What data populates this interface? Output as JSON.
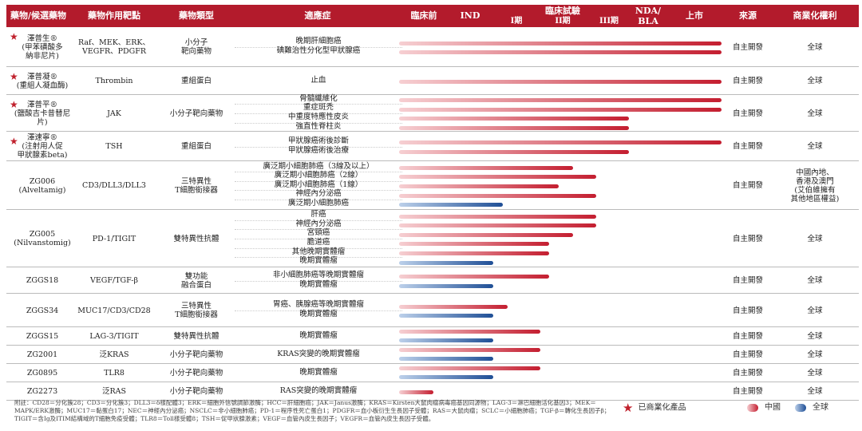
{
  "header": {
    "drug": "藥物/候選藥物",
    "target": "藥物作用靶點",
    "type": "藥物類型",
    "indication": "適應症",
    "preclinical": "臨床前",
    "ind": "IND",
    "clinical": "臨床試驗",
    "phase1": "I期",
    "phase2": "II期",
    "phase3": "III期",
    "nda": "NDA/\nBLA",
    "market": "上市",
    "source": "來源",
    "rights": "商業化權利"
  },
  "colors": {
    "header_bg": "#b31b2c",
    "china_bar": "#c41e30",
    "global_bar": "#1f4f96",
    "star": "#c0202c"
  },
  "chart_data": {
    "type": "bar",
    "orientation": "horizontal",
    "stages": [
      "臨床前",
      "IND",
      "I期",
      "II期",
      "III期",
      "NDA/BLA",
      "上市"
    ],
    "series": [
      {
        "name": "中國",
        "color": "#c41e30"
      },
      {
        "name": "全球",
        "color": "#1f4f96"
      }
    ],
    "value_note": "progress along stage axis: 0 = start of 臨床前, 7 = end of 上市",
    "groups": [
      {
        "starred": true,
        "drug": "澤普生®\n(甲苯磺酸多\n納非尼片)",
        "target": "Raf、MEK、ERK、\nVEGFR、PDGFR",
        "type": "小分子\n靶向藥物",
        "source": "自主開發",
        "rights": "全球",
        "indications": [
          {
            "name": "晚期肝細胞癌",
            "bars": [
              {
                "region": "cn",
                "progress": 7.0
              }
            ]
          },
          {
            "name": "碘難治性分化型甲狀腺癌",
            "bars": [
              {
                "region": "cn",
                "progress": 7.0
              }
            ]
          }
        ]
      },
      {
        "starred": true,
        "drug": "澤普凝®\n(重組人凝血酶)",
        "target": "Thrombin",
        "type": "重組蛋白",
        "source": "自主開發",
        "rights": "全球",
        "indications": [
          {
            "name": "止血",
            "bars": [
              {
                "region": "cn",
                "progress": 7.0
              }
            ]
          }
        ]
      },
      {
        "starred": true,
        "drug": "澤普平®\n(鹽酸吉卡昔替尼片)",
        "target": "JAK",
        "type": "小分子靶向藥物",
        "source": "自主開發",
        "rights": "全球",
        "indications": [
          {
            "name": "骨髓纖維化",
            "bars": [
              {
                "region": "cn",
                "progress": 7.0
              }
            ]
          },
          {
            "name": "重症斑禿",
            "bars": [
              {
                "region": "cn",
                "progress": 7.0
              }
            ]
          },
          {
            "name": "中重度特應性皮炎",
            "bars": [
              {
                "region": "cn",
                "progress": 5.0
              }
            ]
          },
          {
            "name": "強直性脊柱炎",
            "bars": [
              {
                "region": "cn",
                "progress": 5.0
              }
            ]
          }
        ]
      },
      {
        "starred": true,
        "drug": "澤速寧®\n(注射用人促\n甲狀腺素beta)",
        "target": "TSH",
        "type": "重組蛋白",
        "source": "自主開發",
        "rights": "全球",
        "indications": [
          {
            "name": "甲狀腺癌術後診斷",
            "bars": [
              {
                "region": "cn",
                "progress": 7.0
              }
            ]
          },
          {
            "name": "甲狀腺癌術後治療",
            "bars": [
              {
                "region": "cn",
                "progress": 5.0
              }
            ]
          }
        ]
      },
      {
        "starred": false,
        "drug": "ZG006\n(Alveltamig)",
        "target": "CD3/DLL3/DLL3",
        "type": "三特異性\nT細胞銜接器",
        "source": "自主開發",
        "rights": "中國內地、\n香港及澳門\n(艾伯維擁有\n其他地區權益)",
        "indications": [
          {
            "name": "廣泛期小細胞肺癌（3線及以上）",
            "bars": [
              {
                "region": "cn",
                "progress": 3.8
              }
            ]
          },
          {
            "name": "廣泛期小細胞肺癌（2線）",
            "bars": [
              {
                "region": "cn",
                "progress": 4.3
              }
            ]
          },
          {
            "name": "廣泛期小細胞肺癌（1線）",
            "bars": [
              {
                "region": "cn",
                "progress": 3.5
              }
            ]
          },
          {
            "name": "神經內分泌癌",
            "bars": [
              {
                "region": "cn",
                "progress": 4.3
              }
            ]
          },
          {
            "name": "廣泛期小細胞肺癌",
            "bars": [
              {
                "region": "gl",
                "progress": 2.3
              }
            ]
          }
        ]
      },
      {
        "starred": false,
        "drug": "ZG005\n(Nilvanstomig)",
        "target": "PD-1/TIGIT",
        "type": "雙特異性抗體",
        "source": "自主開發",
        "rights": "全球",
        "indications": [
          {
            "name": "肝癌",
            "bars": [
              {
                "region": "cn",
                "progress": 4.3
              }
            ]
          },
          {
            "name": "神經內分泌癌",
            "bars": [
              {
                "region": "cn",
                "progress": 4.3
              }
            ]
          },
          {
            "name": "宮頸癌",
            "bars": [
              {
                "region": "cn",
                "progress": 3.8
              }
            ]
          },
          {
            "name": "膽道癌",
            "bars": [
              {
                "region": "cn",
                "progress": 3.3
              }
            ]
          },
          {
            "name": "其他晚期實體瘤",
            "bars": [
              {
                "region": "cn",
                "progress": 3.3
              }
            ]
          },
          {
            "name": "晚期實體瘤",
            "bars": [
              {
                "region": "gl",
                "progress": 2.1
              }
            ]
          }
        ]
      },
      {
        "starred": false,
        "drug": "ZGGS18",
        "target": "VEGF/TGF-β",
        "type": "雙功能\n融合蛋白",
        "source": "自主開發",
        "rights": "全球",
        "indications": [
          {
            "name": "非小細胞肺癌等晚期實體瘤",
            "bars": [
              {
                "region": "cn",
                "progress": 3.3
              }
            ]
          },
          {
            "name": "晚期實體瘤",
            "bars": [
              {
                "region": "gl",
                "progress": 2.1
              }
            ]
          }
        ]
      },
      {
        "starred": false,
        "drug": "ZGGS34",
        "target": "MUC17/CD3/CD28",
        "type": "三特異性\nT細胞銜接器",
        "source": "自主開發",
        "rights": "全球",
        "indications": [
          {
            "name": "胃癌、胰腺癌等晚期實體瘤",
            "bars": [
              {
                "region": "cn",
                "progress": 2.4
              }
            ]
          },
          {
            "name": "晚期實體瘤",
            "bars": [
              {
                "region": "gl",
                "progress": 2.1
              }
            ]
          }
        ]
      },
      {
        "starred": false,
        "drug": "ZGGS15",
        "target": "LAG-3/TIGIT",
        "type": "雙特異性抗體",
        "source": "自主開發",
        "rights": "全球",
        "indications": [
          {
            "name": "晚期實體瘤",
            "bars": [
              {
                "region": "cn",
                "progress": 3.1
              },
              {
                "region": "gl",
                "progress": 2.1
              }
            ]
          }
        ]
      },
      {
        "starred": false,
        "drug": "ZG2001",
        "target": "泛KRAS",
        "type": "小分子靶向藥物",
        "source": "自主開發",
        "rights": "全球",
        "indications": [
          {
            "name": "KRAS突變的晚期實體瘤",
            "bars": [
              {
                "region": "cn",
                "progress": 3.1
              },
              {
                "region": "gl",
                "progress": 2.1
              }
            ]
          }
        ]
      },
      {
        "starred": false,
        "drug": "ZG0895",
        "target": "TLR8",
        "type": "小分子靶向藥物",
        "source": "自主開發",
        "rights": "全球",
        "indications": [
          {
            "name": "晚期實體瘤",
            "bars": [
              {
                "region": "cn",
                "progress": 3.1
              },
              {
                "region": "gl",
                "progress": 2.1
              }
            ]
          }
        ]
      },
      {
        "starred": false,
        "drug": "ZG2273",
        "target": "泛RAS",
        "type": "小分子靶向藥物",
        "source": "自主開發",
        "rights": "全球",
        "indications": [
          {
            "name": "RAS突變的晚期實體瘤",
            "bars": [
              {
                "region": "cn",
                "progress": 0.8
              }
            ]
          }
        ]
      }
    ]
  },
  "footer": {
    "footnote": "附註：CD28＝分化簇28；CD3＝分化簇3；DLL3＝δ樣配體3；ERK＝細胞外信號調節激酶；HCC＝肝細胞癌；JAK＝Janus激酶；KRAS＝Kirsten大鼠肉瘤病毒癌基因同源物；LAG-3＝淋巴細胞活化基因3；MEK＝MAPK/ERK激酶；MUC17＝黏蛋白17；NEC＝神經內分泌癌；NSCLC＝非小細胞肺癌；PD-1＝程序性死亡蛋白1；PDGFR＝血小板衍生生長因子受體；RAS＝大鼠肉瘤；SCLC＝小細胞肺癌；TGF-β＝轉化生長因子β；TIGIT＝含Ig及ITIM結構域的T細胞免疫受體；TLR8＝Toll樣受體8；TSH＝促甲狀腺激素；VEGF＝血管內皮生長因子；VEGFR＝血管內皮生長因子受體。",
    "legend_star": "已商業化產品",
    "legend_china": "中國",
    "legend_global": "全球"
  }
}
